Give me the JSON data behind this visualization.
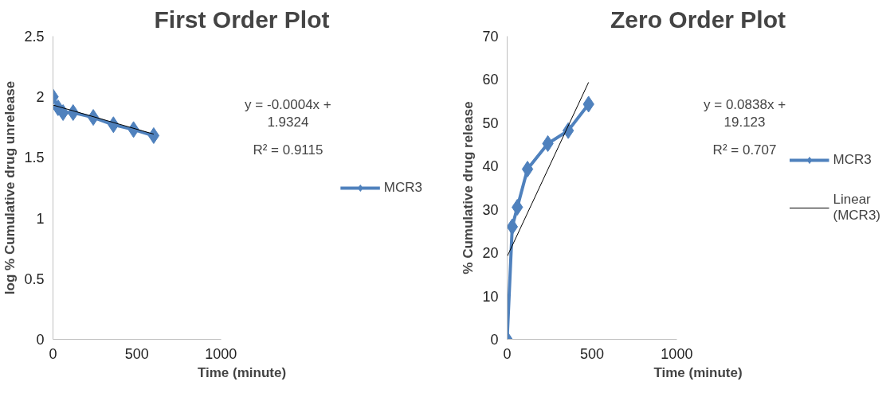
{
  "chart_data": [
    {
      "type": "line",
      "title": "First Order Plot",
      "xlabel": "Time (minute)",
      "ylabel": "log % Cumulative drug unrelease",
      "xlim": [
        0,
        1000
      ],
      "xticks": [
        0,
        500,
        1000
      ],
      "ylim": [
        0,
        2.5
      ],
      "yticks": [
        0,
        0.5,
        1,
        1.5,
        2,
        2.5
      ],
      "grid": false,
      "legend": "right",
      "marker": "diamond",
      "line_style": "solid",
      "annotations": [
        "y = -0.0004x + 1.9324",
        "R² = 0.9115"
      ],
      "series": [
        {
          "name": "MCR3",
          "color": "#4f81bd",
          "x": [
            0,
            30,
            60,
            120,
            240,
            360,
            480,
            600
          ],
          "values": [
            2.0,
            1.91,
            1.87,
            1.87,
            1.83,
            1.77,
            1.73,
            1.68
          ]
        },
        {
          "type": "line",
          "color": "#000000",
          "marker": "none",
          "x": [
            0,
            600
          ],
          "values": [
            1.9324,
            1.6924
          ]
        }
      ]
    },
    {
      "type": "line",
      "title": "Zero Order Plot",
      "xlabel": "Time (minute)",
      "ylabel": "% Cumulative drug release",
      "xlim": [
        0,
        1000
      ],
      "xticks": [
        0,
        500,
        1000
      ],
      "ylim": [
        0,
        70
      ],
      "yticks": [
        0,
        10,
        20,
        30,
        40,
        50,
        60,
        70
      ],
      "grid": false,
      "legend": "right",
      "marker": "diamond",
      "line_style": "solid",
      "annotations": [
        "y = 0.0838x + 19.123",
        "R² = 0.707"
      ],
      "series": [
        {
          "name": "MCR3",
          "color": "#4f81bd",
          "x": [
            0,
            30,
            60,
            120,
            240,
            360,
            480
          ],
          "values": [
            0,
            26,
            30.5,
            39.3,
            45.2,
            48.2,
            54.3
          ]
        },
        {
          "type": "line",
          "name": "Linear (MCR3)",
          "color": "#000000",
          "marker": "none",
          "x": [
            0,
            480
          ],
          "values": [
            19.123,
            59.347
          ]
        }
      ]
    }
  ]
}
